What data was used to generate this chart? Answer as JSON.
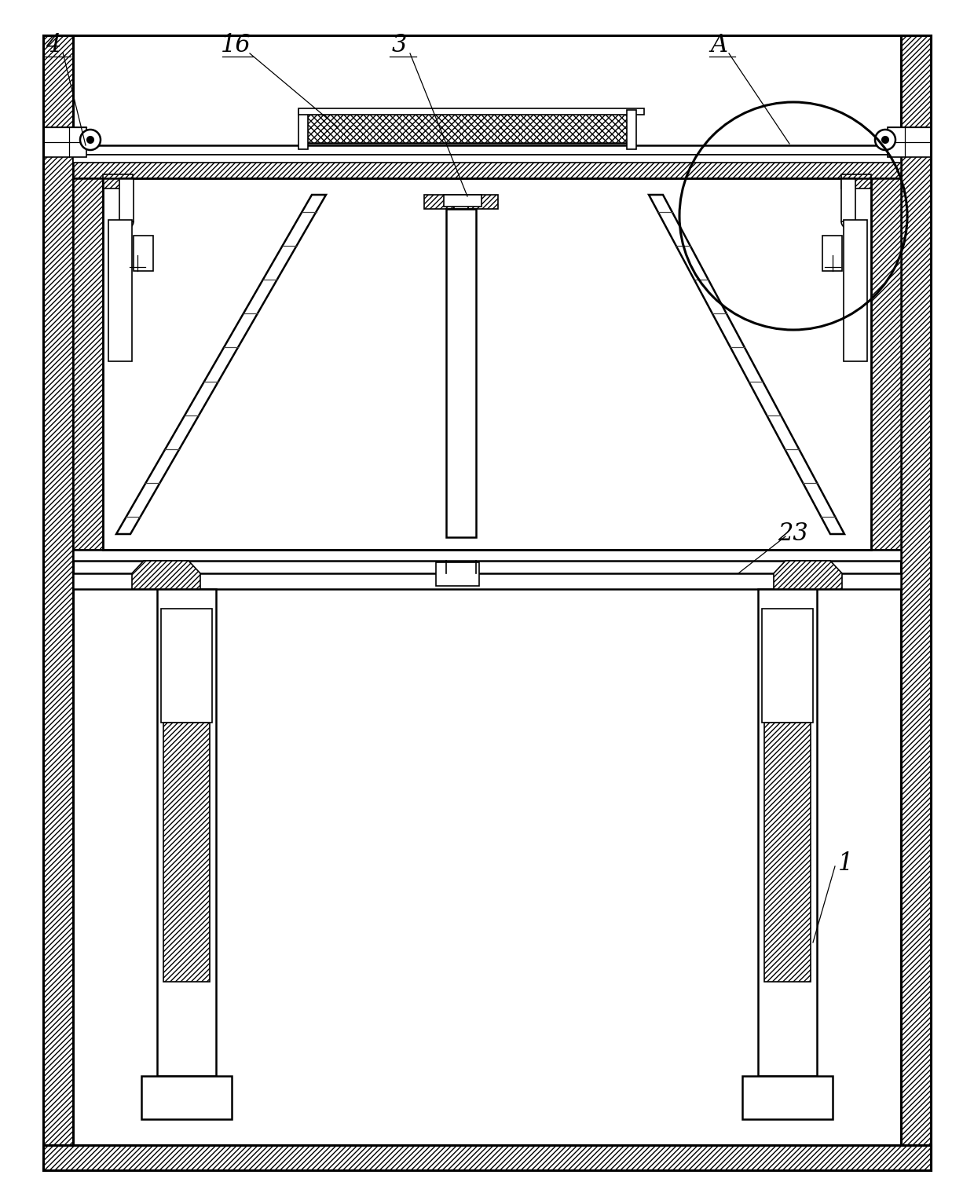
{
  "bg": "#ffffff",
  "lc": "#000000",
  "figsize": [
    12.4,
    15.33
  ],
  "dpi": 100
}
